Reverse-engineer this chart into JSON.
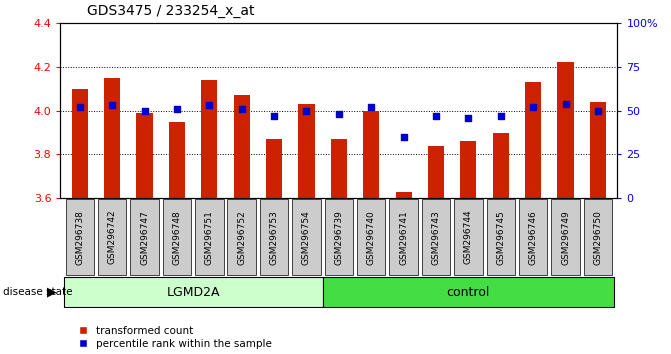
{
  "title": "GDS3475 / 233254_x_at",
  "samples": [
    "GSM296738",
    "GSM296742",
    "GSM296747",
    "GSM296748",
    "GSM296751",
    "GSM296752",
    "GSM296753",
    "GSM296754",
    "GSM296739",
    "GSM296740",
    "GSM296741",
    "GSM296743",
    "GSM296744",
    "GSM296745",
    "GSM296746",
    "GSM296749",
    "GSM296750"
  ],
  "bar_values": [
    4.1,
    4.15,
    3.99,
    3.95,
    4.14,
    4.07,
    3.87,
    4.03,
    3.87,
    4.0,
    3.63,
    3.84,
    3.86,
    3.9,
    4.13,
    4.22,
    4.04
  ],
  "dot_values": [
    52,
    53,
    50,
    51,
    53,
    51,
    47,
    50,
    48,
    52,
    35,
    47,
    46,
    47,
    52,
    54,
    50
  ],
  "bar_color": "#cc2200",
  "dot_color": "#0000cc",
  "ylim_left": [
    3.6,
    4.4
  ],
  "ylim_right": [
    0,
    100
  ],
  "yticks_left": [
    3.6,
    3.8,
    4.0,
    4.2,
    4.4
  ],
  "yticks_right": [
    0,
    25,
    50,
    75,
    100
  ],
  "ytick_labels_right": [
    "0",
    "25",
    "50",
    "75",
    "100%"
  ],
  "baseline": 3.6,
  "groups": [
    {
      "label": "LGMD2A",
      "start": 0,
      "end": 8,
      "color": "#ccffcc"
    },
    {
      "label": "control",
      "start": 8,
      "end": 17,
      "color": "#44dd44"
    }
  ],
  "disease_state_label": "disease state",
  "legend_items": [
    {
      "label": "transformed count",
      "color": "#cc2200"
    },
    {
      "label": "percentile rank within the sample",
      "color": "#0000cc"
    }
  ],
  "cell_color": "#cccccc",
  "bar_width": 0.5
}
